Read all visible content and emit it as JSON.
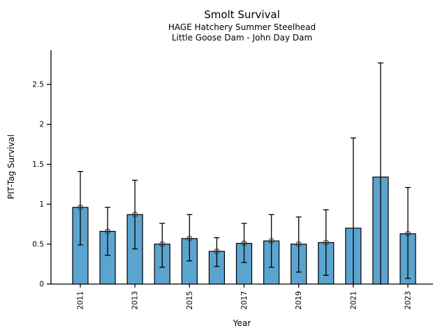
{
  "chart_data": {
    "type": "bar",
    "title": "Smolt Survival",
    "subtitle_lines": [
      "HAGE Hatchery Summer Steelhead",
      "Little Goose Dam - John Day Dam"
    ],
    "xlabel": "Year",
    "ylabel": "PIT-Tag Survival",
    "grid": false,
    "legend": null,
    "ylim": [
      0,
      2.93
    ],
    "bar_color": "#5ba4cf",
    "bar_edge_color": "#000000",
    "error_color": "#000000",
    "marker_color": "#3a3a3a",
    "axis_color": "#000000",
    "text_color": "#000000",
    "y_ticks": [
      {
        "value": 0,
        "label": "0"
      },
      {
        "value": 0.5,
        "label": "0.5"
      },
      {
        "value": 1,
        "label": "1"
      },
      {
        "value": 1.5,
        "label": "1.5"
      },
      {
        "value": 2,
        "label": "2"
      },
      {
        "value": 2.5,
        "label": "2.5"
      }
    ],
    "points": [
      {
        "year": "2011",
        "value": 0.96,
        "ci_low": 0.49,
        "ci_high": 1.41,
        "marker": true,
        "low_cap": true,
        "x_tick": true
      },
      {
        "year": "2012",
        "value": 0.66,
        "ci_low": 0.36,
        "ci_high": 0.96,
        "marker": true,
        "low_cap": true,
        "x_tick": false
      },
      {
        "year": "2013",
        "value": 0.87,
        "ci_low": 0.44,
        "ci_high": 1.3,
        "marker": true,
        "low_cap": true,
        "x_tick": true
      },
      {
        "year": "2014",
        "value": 0.5,
        "ci_low": 0.21,
        "ci_high": 0.76,
        "marker": true,
        "low_cap": true,
        "x_tick": false
      },
      {
        "year": "2015",
        "value": 0.57,
        "ci_low": 0.29,
        "ci_high": 0.87,
        "marker": true,
        "low_cap": true,
        "x_tick": true
      },
      {
        "year": "2016",
        "value": 0.41,
        "ci_low": 0.22,
        "ci_high": 0.58,
        "marker": true,
        "low_cap": true,
        "x_tick": false
      },
      {
        "year": "2017",
        "value": 0.51,
        "ci_low": 0.27,
        "ci_high": 0.76,
        "marker": true,
        "low_cap": true,
        "x_tick": true
      },
      {
        "year": "2018",
        "value": 0.54,
        "ci_low": 0.21,
        "ci_high": 0.87,
        "marker": true,
        "low_cap": true,
        "x_tick": false
      },
      {
        "year": "2019",
        "value": 0.5,
        "ci_low": 0.15,
        "ci_high": 0.84,
        "marker": true,
        "low_cap": true,
        "x_tick": true
      },
      {
        "year": "2020",
        "value": 0.52,
        "ci_low": 0.11,
        "ci_high": 0.93,
        "marker": true,
        "low_cap": true,
        "x_tick": false
      },
      {
        "year": "2021",
        "value": 0.7,
        "ci_low": 0.0,
        "ci_high": 1.83,
        "marker": false,
        "low_cap": false,
        "x_tick": true
      },
      {
        "year": "2022",
        "value": 1.34,
        "ci_low": 0.0,
        "ci_high": 2.77,
        "marker": false,
        "low_cap": false,
        "x_tick": false
      },
      {
        "year": "2023",
        "value": 0.63,
        "ci_low": 0.07,
        "ci_high": 1.21,
        "marker": true,
        "low_cap": true,
        "x_tick": true
      }
    ]
  }
}
